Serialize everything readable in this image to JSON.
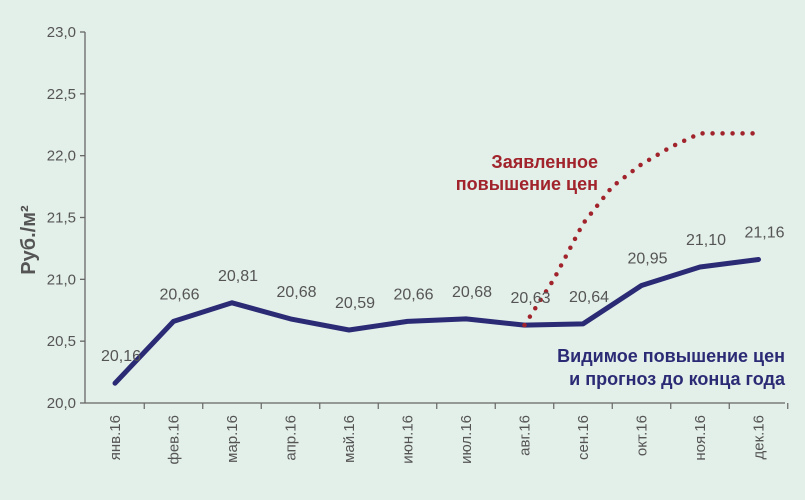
{
  "chart_data": {
    "type": "line",
    "title": "",
    "ylabel": "Руб./м²",
    "xlabel": "",
    "ylim": [
      20.0,
      23.0
    ],
    "yticks": [
      "20,0",
      "20,5",
      "21,0",
      "21,5",
      "22,0",
      "22,5",
      "23,0"
    ],
    "yticks_values": [
      20.0,
      20.5,
      21.0,
      21.5,
      22.0,
      22.5,
      23.0
    ],
    "categories": [
      "янв.16",
      "фев.16",
      "мар.16",
      "апр.16",
      "май.16",
      "июн.16",
      "июл.16",
      "авг.16",
      "сен.16",
      "окт.16",
      "ноя.16",
      "дек.16"
    ],
    "grid": false,
    "series": [
      {
        "name": "Видимое повышение цен и прогноз до конца года",
        "style": "solid",
        "color": "#2b2a75",
        "values": [
          20.16,
          20.66,
          20.81,
          20.68,
          20.59,
          20.66,
          20.68,
          20.63,
          20.64,
          20.95,
          21.1,
          21.16
        ],
        "labels": [
          "20,16",
          "20,66",
          "20,81",
          "20,68",
          "20,59",
          "20,66",
          "20,68",
          "20,63",
          "20,64",
          "20,95",
          "21,10",
          "21,16"
        ]
      },
      {
        "name": "Заявленное повышение цен",
        "style": "dotted",
        "color": "#a1232b",
        "x": [
          7,
          7.5,
          8,
          8.5,
          9,
          9.5,
          10,
          10.5,
          11
        ],
        "values": [
          20.63,
          21.0,
          21.45,
          21.75,
          21.93,
          22.07,
          22.18,
          22.18,
          22.18
        ]
      }
    ],
    "annotations": {
      "declared_line1": "Заявленное",
      "declared_line2": "повышение цен",
      "visible_line1": "Видимое повышение цен",
      "visible_line2": "и прогноз до конца года"
    }
  }
}
